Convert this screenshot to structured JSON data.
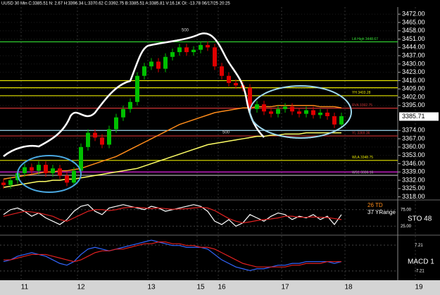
{
  "chart_data": {
    "type": "candlestick",
    "title": "UUSD 30 Min C:3385.51 N: 2.67 H:3396.34 L:3370.62 C:3392.75 B:3385.51 A:3385.81 V:16.1K OI: -13.78 06/17/25 20:25",
    "categories": [
      null,
      null,
      null,
      "11",
      null,
      null,
      null,
      null,
      null,
      null,
      null,
      "12",
      null,
      null,
      null,
      null,
      null,
      null,
      null,
      null,
      null,
      "13",
      null,
      null,
      null,
      null,
      null,
      null,
      "15",
      null,
      null,
      "16",
      null,
      null,
      null,
      null,
      null,
      null,
      null,
      null,
      "17",
      null,
      null,
      null,
      null,
      null,
      null,
      null,
      null,
      "18",
      null,
      null,
      null,
      null,
      null,
      null,
      null,
      null,
      null,
      "19",
      null,
      null
    ],
    "up_color": "#00c000",
    "down_color": "#e00000",
    "open": [
      3330,
      3328,
      3332,
      3338,
      3343,
      3340,
      3345,
      3338,
      3342,
      3336,
      3330,
      3340,
      3360,
      3372,
      3368,
      3362,
      3375,
      3385,
      3392,
      3398,
      3420,
      3428,
      3432,
      3426,
      3436,
      3440,
      3444,
      3440,
      3442,
      3446,
      3444,
      3428,
      3420,
      3414,
      3412,
      3410,
      3392,
      3396,
      3390,
      3388,
      3392,
      3394,
      3390,
      3388,
      3391,
      3387,
      3389,
      3386,
      3379,
      null,
      null,
      null,
      null,
      null,
      null,
      null,
      null,
      null,
      null,
      null,
      null,
      null
    ],
    "high": [
      3333,
      3335,
      3341,
      3346,
      3346,
      3348,
      3348,
      3345,
      3345,
      3339,
      3343,
      3363,
      3375,
      3375,
      3371,
      3378,
      3388,
      3395,
      3401,
      3423,
      3431,
      3435,
      3435,
      3439,
      3443,
      3447,
      3447,
      3445,
      3449,
      3449,
      3447,
      3431,
      3423,
      3417,
      3415,
      3413,
      3399,
      3399,
      3393,
      3395,
      3397,
      3397,
      3393,
      3394,
      3394,
      3392,
      3392,
      3389,
      3389,
      null,
      null,
      null,
      null,
      null,
      null,
      null,
      null,
      null,
      null,
      null,
      null,
      null
    ],
    "low": [
      3325,
      3325,
      3329,
      3335,
      3337,
      3337,
      3335,
      3335,
      3333,
      3327,
      3327,
      3337,
      3357,
      3365,
      3359,
      3359,
      3372,
      3382,
      3389,
      3395,
      3417,
      3425,
      3423,
      3423,
      3433,
      3437,
      3437,
      3437,
      3439,
      3441,
      3425,
      3417,
      3411,
      3409,
      3407,
      3389,
      3389,
      3387,
      3385,
      3385,
      3389,
      3387,
      3385,
      3385,
      3384,
      3384,
      3383,
      3376,
      3376,
      null,
      null,
      null,
      null,
      null,
      null,
      null,
      null,
      null,
      null,
      null,
      null,
      null
    ],
    "close": [
      3328,
      3332,
      3338,
      3343,
      3340,
      3345,
      3338,
      3342,
      3336,
      3330,
      3340,
      3360,
      3372,
      3368,
      3362,
      3375,
      3385,
      3392,
      3398,
      3420,
      3428,
      3432,
      3426,
      3436,
      3440,
      3444,
      3440,
      3442,
      3446,
      3444,
      3428,
      3420,
      3414,
      3412,
      3410,
      3392,
      3396,
      3390,
      3388,
      3392,
      3394,
      3390,
      3388,
      3391,
      3387,
      3389,
      3386,
      3379,
      3386,
      null,
      null,
      null,
      null,
      null,
      null,
      null,
      null,
      null,
      null,
      null,
      null,
      null
    ],
    "series": [
      {
        "color": "#ff8c1a",
        "values": [
          3333,
          3334,
          3335,
          3336,
          3337,
          3338,
          3339,
          3339,
          3340,
          3340,
          3341,
          3342,
          3344,
          3346,
          3348,
          3350,
          3352,
          3355,
          3358,
          3361,
          3364,
          3367,
          3370,
          3373,
          3376,
          3379,
          3381,
          3383,
          3385,
          3387,
          3389,
          3390,
          3391,
          3392,
          3393,
          3393,
          3394,
          3394,
          3394,
          3395,
          3395,
          3395,
          3395,
          3395,
          3395,
          3394,
          3394,
          3394,
          3393,
          null,
          null,
          null,
          null,
          null,
          null,
          null,
          null,
          null,
          null,
          null,
          null,
          null
        ]
      },
      {
        "color": "#ffff66",
        "values": [
          3326,
          3327,
          3328,
          3329,
          3330,
          3331,
          3331,
          3332,
          3332,
          3333,
          3333,
          3334,
          3335,
          3336,
          3337,
          3338,
          3339,
          3340,
          3341,
          3342,
          3344,
          3346,
          3348,
          3350,
          3352,
          3354,
          3356,
          3358,
          3360,
          3362,
          3363,
          3364,
          3365,
          3366,
          3367,
          3368,
          3369,
          3369,
          3370,
          3370,
          3371,
          3371,
          3371,
          3372,
          3372,
          3372,
          3372,
          3372,
          3372,
          null,
          null,
          null,
          null,
          null,
          null,
          null,
          null,
          null,
          null,
          null,
          null,
          null
        ]
      }
    ],
    "ylim": [
      3316,
      3478
    ],
    "yticks": [
      {
        "value": 3472,
        "label": "3472.00"
      },
      {
        "value": 3465,
        "label": "3465.00"
      },
      {
        "value": 3458,
        "label": "3458.00"
      },
      {
        "value": 3451,
        "label": "3451.00"
      },
      {
        "value": 3444,
        "label": "3444.00"
      },
      {
        "value": 3437,
        "label": "3437.00"
      },
      {
        "value": 3430,
        "label": "3430.00"
      },
      {
        "value": 3423,
        "label": "3423.00"
      },
      {
        "value": 3416,
        "label": "3416.00"
      },
      {
        "value": 3409,
        "label": "3409.00"
      },
      {
        "value": 3402,
        "label": "3402.00"
      },
      {
        "value": 3395,
        "label": "3395.00"
      },
      {
        "value": 3374,
        "label": "3374.00"
      },
      {
        "value": 3367,
        "label": "3367.00"
      },
      {
        "value": 3360,
        "label": "3360.00"
      },
      {
        "value": 3353,
        "label": "3353.00"
      },
      {
        "value": 3346,
        "label": "3346.00"
      },
      {
        "value": 3339,
        "label": "3339.00"
      },
      {
        "value": 3332,
        "label": "3332.00"
      },
      {
        "value": 3325,
        "label": "3325.00"
      },
      {
        "value": 3318,
        "label": "3318.00"
      }
    ],
    "last_price": 3385.71,
    "levels": [
      {
        "value": 3448.67,
        "color": "#33dd33",
        "label": "LA High 3448.67"
      },
      {
        "value": 3416,
        "color": "#e6e600"
      },
      {
        "value": 3410,
        "color": "#e6e600"
      },
      {
        "value": 3403.28,
        "color": "#e6e600",
        "label": "YH 3403.28"
      },
      {
        "value": 3392.75,
        "color": "#cc3333",
        "label": "RVA 3392.75"
      },
      {
        "value": 3374,
        "color": "#9fd8ee"
      },
      {
        "value": 3369.36,
        "color": "#cc3333",
        "label": "YL 3369.36"
      },
      {
        "value": 3348.75,
        "color": "#e6e600",
        "label": "WLA 3348.75"
      },
      {
        "value": 3339,
        "color": "#e020e0"
      },
      {
        "value": 3336.16,
        "color": "#aaaaaa",
        "label": "WS1 3336.16"
      }
    ],
    "annotations": [
      "500",
      "500"
    ],
    "sto": {
      "title": "STO 48",
      "labels": [
        "26 TD",
        "37 YRange"
      ],
      "ylim": [
        0,
        100
      ],
      "yticks": [
        {
          "value": 75,
          "label": "75.00"
        },
        {
          "value": 25,
          "label": "25.00"
        }
      ],
      "series": [
        {
          "color": "#ffffff",
          "values": [
            60,
            75,
            80,
            70,
            55,
            65,
            50,
            40,
            30,
            45,
            70,
            85,
            90,
            70,
            60,
            80,
            85,
            90,
            85,
            80,
            75,
            85,
            80,
            70,
            75,
            80,
            85,
            90,
            85,
            70,
            40,
            30,
            45,
            25,
            35,
            60,
            50,
            40,
            55,
            65,
            60,
            45,
            55,
            50,
            60,
            45,
            55,
            30,
            60,
            null,
            null,
            null,
            null,
            null,
            null,
            null,
            null,
            null,
            null,
            null,
            null,
            null
          ]
        },
        {
          "color": "#e02020",
          "values": [
            55,
            60,
            65,
            70,
            68,
            65,
            60,
            55,
            45,
            40,
            50,
            60,
            70,
            75,
            75,
            72,
            75,
            80,
            82,
            82,
            80,
            78,
            80,
            78,
            76,
            77,
            78,
            80,
            82,
            80,
            72,
            60,
            48,
            40,
            35,
            38,
            42,
            45,
            47,
            50,
            55,
            55,
            52,
            52,
            53,
            52,
            51,
            48,
            45,
            null,
            null,
            null,
            null,
            null,
            null,
            null,
            null,
            null,
            null,
            null,
            null,
            null
          ]
        }
      ]
    },
    "macd": {
      "title": "MACD 1",
      "ylim": [
        -12,
        12
      ],
      "yticks": [
        7.21,
        -7.21
      ],
      "series": [
        {
          "color": "#3366ff",
          "values": [
            -2,
            -1,
            1,
            2,
            3,
            2,
            1,
            -1,
            -3,
            -4,
            -2,
            2,
            5,
            6,
            5,
            4,
            5,
            6,
            7,
            8,
            9,
            10,
            9,
            8,
            7,
            7,
            6,
            6,
            6,
            5,
            2,
            -1,
            -3,
            -5,
            -6,
            -7,
            -6,
            -6,
            -5,
            -4,
            -4,
            -3,
            -3,
            -2,
            -2,
            -2,
            -2,
            -3,
            -2,
            null,
            null,
            null,
            null,
            null,
            null,
            null,
            null,
            null,
            null,
            null,
            null,
            null
          ]
        },
        {
          "color": "#e02020",
          "values": [
            -1,
            -1,
            0,
            1,
            2,
            2,
            2,
            1,
            0,
            -1,
            -2,
            -1,
            1,
            3,
            4,
            4,
            5,
            5,
            6,
            7,
            8,
            8,
            9,
            9,
            8,
            8,
            7,
            7,
            6,
            6,
            5,
            3,
            1,
            -1,
            -3,
            -4,
            -5,
            -5,
            -5,
            -5,
            -5,
            -4,
            -4,
            -3,
            -3,
            -3,
            -2,
            -2,
            -2,
            null,
            null,
            null,
            null,
            null,
            null,
            null,
            null,
            null,
            null,
            null,
            null,
            null
          ]
        }
      ]
    }
  }
}
